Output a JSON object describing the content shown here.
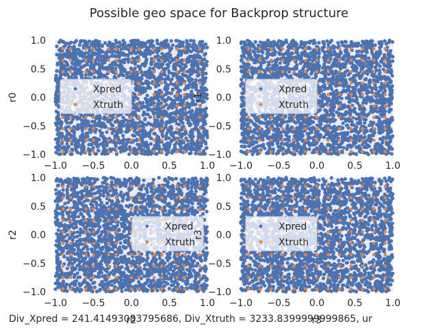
{
  "figure": {
    "title": "Possible geo space for Backprop structure",
    "footer": "Div_Xpred = 241.41493083795686, Div_Xtruth = 3233.8399999999865, ur"
  },
  "colors": {
    "xpred": "#4c72b0",
    "xtruth": "#dd8452",
    "axes_bg": "#eaeaf2",
    "legend_bg": "#ffffff"
  },
  "chart_data": [
    {
      "type": "scatter",
      "xlabel": "",
      "ylabel": "r0",
      "xlim": [
        -1.0,
        1.0
      ],
      "ylim": [
        -1.0,
        1.0
      ],
      "xticks": [
        "−1.0",
        "−0.5",
        "0.0",
        "0.5",
        "1.0"
      ],
      "yticks": [
        "−1.0",
        "−0.5",
        "0.0",
        "0.5",
        "1.0"
      ],
      "legend": {
        "placement": "center-left",
        "entries": [
          "Xpred",
          "Xtruth"
        ]
      },
      "series": [
        {
          "name": "Xpred",
          "description": "dense uniform cloud covering [-1,1] x [-1,1]"
        },
        {
          "name": "Xtruth",
          "grid_x": [
            -0.9,
            -0.8,
            -0.6,
            -0.5,
            -0.3,
            -0.2,
            0.0,
            0.1,
            0.3,
            0.4,
            0.6,
            0.7,
            0.9
          ],
          "grid_y": [
            -0.95,
            -0.75,
            -0.55,
            -0.35,
            -0.15,
            0.05,
            0.25,
            0.45,
            0.65,
            0.85
          ]
        }
      ]
    },
    {
      "type": "scatter",
      "xlabel": "",
      "ylabel": "r1",
      "xlim": [
        -1.0,
        1.0
      ],
      "ylim": [
        -1.0,
        1.0
      ],
      "xticks": [
        "−1.0",
        "−0.5",
        "0.0",
        "0.5",
        "1.0"
      ],
      "yticks": [
        "−1.0",
        "−0.5",
        "0.0",
        "0.5",
        "1.0"
      ],
      "legend": {
        "placement": "center-left",
        "entries": [
          "Xpred",
          "Xtruth"
        ]
      },
      "series": [
        {
          "name": "Xpred",
          "description": "dense uniform cloud covering [-1,1] x [-1,1]"
        },
        {
          "name": "Xtruth",
          "grid_x": [
            -0.9,
            -0.75,
            -0.6,
            -0.45,
            -0.3,
            -0.15,
            0.0,
            0.15,
            0.3,
            0.45,
            0.6,
            0.75,
            0.9
          ],
          "grid_y": [
            -0.95,
            -0.75,
            -0.55,
            -0.35,
            -0.15,
            0.05,
            0.25,
            0.45,
            0.65,
            0.85
          ]
        }
      ]
    },
    {
      "type": "scatter",
      "xlabel": "r2",
      "ylabel": "r2",
      "xlim": [
        -1.0,
        1.0
      ],
      "ylim": [
        -1.0,
        1.0
      ],
      "xticks": [
        "−1.0",
        "−0.5",
        "0.0",
        "0.5",
        "1.0"
      ],
      "yticks": [
        "−1.0",
        "−0.5",
        "0.0",
        "0.5",
        "1.0"
      ],
      "legend": {
        "placement": "center-right",
        "entries": [
          "Xpred",
          "Xtruth"
        ]
      },
      "series": [
        {
          "name": "Xpred",
          "description": "dense uniform cloud covering [-1,1] x [-1,1]"
        },
        {
          "name": "Xtruth",
          "grid_x": [
            -0.9,
            -0.8,
            -0.6,
            -0.5,
            -0.3,
            -0.2,
            0.0,
            0.1,
            0.3,
            0.4,
            0.6,
            0.7,
            0.9
          ],
          "grid_y": [
            -0.95,
            -0.75,
            -0.55,
            -0.35,
            -0.15,
            0.05,
            0.25,
            0.45,
            0.65,
            0.85
          ]
        }
      ]
    },
    {
      "type": "scatter",
      "xlabel": "r3",
      "ylabel": "r3",
      "xlim": [
        -1.0,
        1.0
      ],
      "ylim": [
        -1.0,
        1.0
      ],
      "xticks": [
        "−1.0",
        "−0.5",
        "0.0",
        "0.5",
        "1.0"
      ],
      "yticks": [
        "−1.0",
        "−0.5",
        "0.0",
        "0.5",
        "1.0"
      ],
      "legend": {
        "placement": "center-left",
        "entries": [
          "Xpred",
          "Xtruth"
        ]
      },
      "series": [
        {
          "name": "Xpred",
          "description": "dense uniform cloud covering [-1,1] x [-1,1]"
        },
        {
          "name": "Xtruth",
          "grid_x": [
            -0.9,
            -0.75,
            -0.6,
            -0.45,
            -0.3,
            -0.15,
            0.0,
            0.15,
            0.3,
            0.45,
            0.6,
            0.75,
            0.9
          ],
          "grid_y": [
            -0.95,
            -0.75,
            -0.55,
            -0.35,
            -0.15,
            0.05,
            0.25,
            0.45,
            0.65,
            0.85
          ]
        }
      ]
    }
  ]
}
